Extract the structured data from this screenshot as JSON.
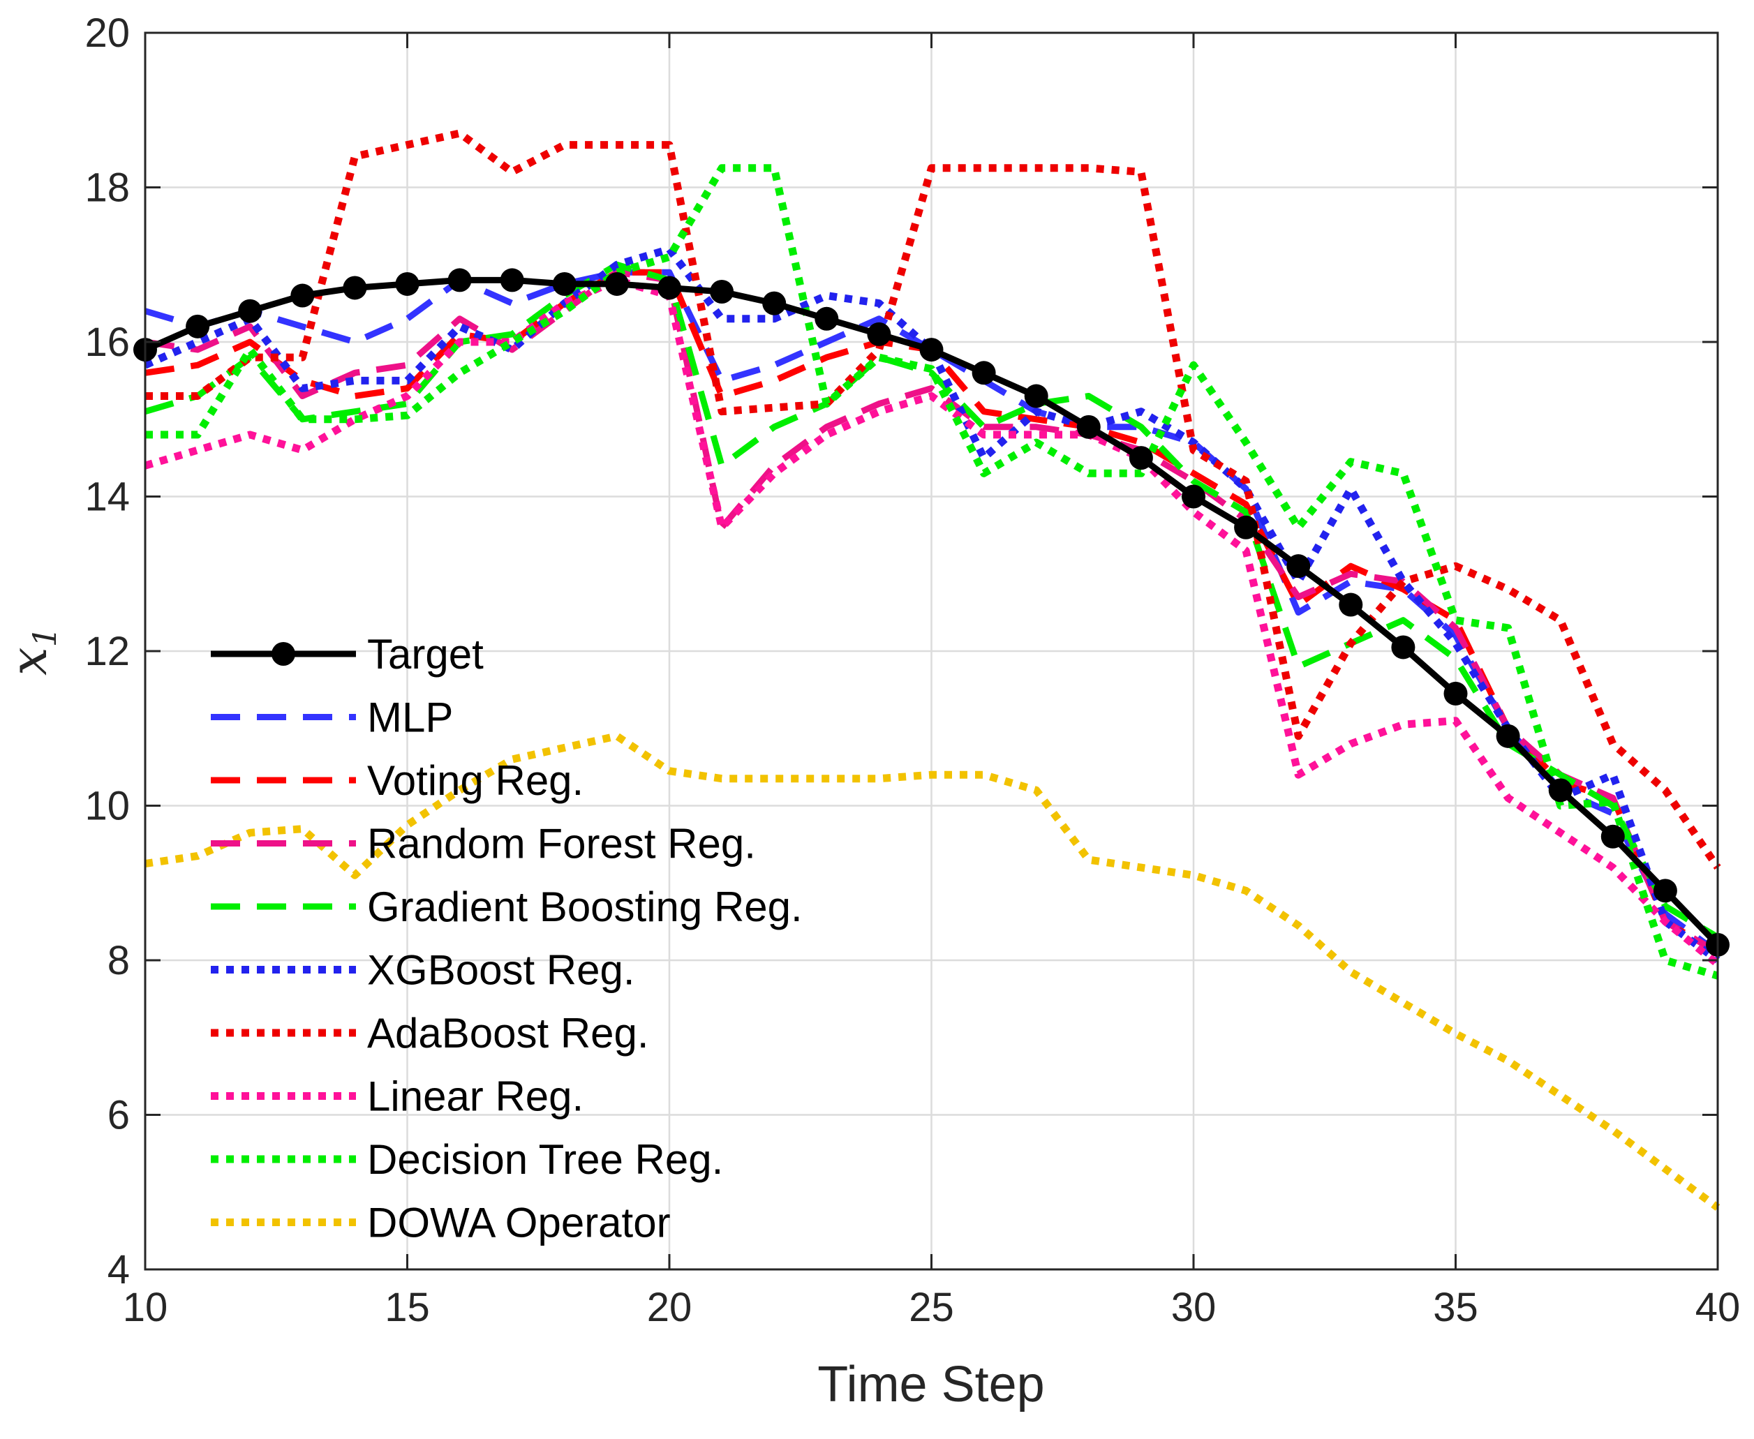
{
  "chart_data": {
    "type": "line",
    "title": "",
    "xlabel": "Time Step",
    "ylabel_var": "x",
    "ylabel_sub": "1",
    "xlim": [
      10,
      40
    ],
    "ylim": [
      4,
      20
    ],
    "xticks": [
      10,
      15,
      20,
      25,
      30,
      35,
      40
    ],
    "yticks": [
      4,
      6,
      8,
      10,
      12,
      14,
      16,
      18,
      20
    ],
    "grid": true,
    "legend_position": "lower-left",
    "x": [
      10,
      11,
      12,
      13,
      14,
      15,
      16,
      17,
      18,
      19,
      20,
      21,
      22,
      23,
      24,
      25,
      26,
      27,
      28,
      29,
      30,
      31,
      32,
      33,
      34,
      35,
      36,
      37,
      38,
      39,
      40
    ],
    "series": [
      {
        "name": "Target",
        "color": "#000000",
        "style": "solid-markers",
        "values": [
          15.9,
          16.2,
          16.4,
          16.6,
          16.7,
          16.75,
          16.8,
          16.8,
          16.75,
          16.75,
          16.7,
          16.65,
          16.5,
          16.3,
          16.1,
          15.9,
          15.6,
          15.3,
          14.9,
          14.5,
          14.0,
          13.6,
          13.1,
          12.6,
          12.05,
          11.45,
          10.9,
          10.2,
          9.6,
          8.9,
          8.2
        ]
      },
      {
        "name": "MLP",
        "color": "#3333FF",
        "style": "dashed",
        "values": [
          16.4,
          16.2,
          16.4,
          16.2,
          16.0,
          16.3,
          16.8,
          16.5,
          16.75,
          16.9,
          16.9,
          15.5,
          15.7,
          16.0,
          16.3,
          15.9,
          15.5,
          15.1,
          14.9,
          14.9,
          14.7,
          14.1,
          12.5,
          12.9,
          12.8,
          12.2,
          11.0,
          10.2,
          9.9,
          8.6,
          8.1
        ]
      },
      {
        "name": "Voting Reg.",
        "color": "#FF0000",
        "style": "dashed",
        "values": [
          15.6,
          15.7,
          16.0,
          15.5,
          15.3,
          15.4,
          16.1,
          16.0,
          16.5,
          16.9,
          16.9,
          15.3,
          15.5,
          15.8,
          16.0,
          15.9,
          15.1,
          15.0,
          14.9,
          14.7,
          14.3,
          13.9,
          12.6,
          13.1,
          12.8,
          12.4,
          11.0,
          10.3,
          10.1,
          8.5,
          8.1
        ]
      },
      {
        "name": "Random Forest Reg.",
        "color": "#EE1188",
        "style": "dashed",
        "values": [
          16.0,
          15.9,
          16.2,
          15.3,
          15.6,
          15.7,
          16.3,
          15.9,
          16.4,
          16.9,
          16.8,
          13.6,
          14.4,
          14.9,
          15.2,
          15.4,
          14.9,
          14.9,
          14.8,
          14.6,
          14.2,
          13.7,
          12.7,
          13.0,
          12.9,
          12.3,
          11.0,
          10.4,
          10.1,
          8.5,
          8.1
        ]
      },
      {
        "name": "Gradient Boosting Reg.",
        "color": "#00EE00",
        "style": "dashed",
        "values": [
          15.1,
          15.3,
          15.8,
          15.0,
          15.1,
          15.2,
          16.0,
          16.1,
          16.6,
          17.0,
          16.8,
          14.4,
          14.9,
          15.2,
          15.8,
          15.6,
          14.9,
          15.2,
          15.3,
          14.9,
          14.2,
          13.8,
          11.8,
          12.1,
          12.4,
          11.9,
          10.8,
          10.4,
          10.0,
          8.7,
          8.3
        ]
      },
      {
        "name": "XGBoost Reg.",
        "color": "#2222EE",
        "style": "dotted",
        "values": [
          15.7,
          16.0,
          16.3,
          15.4,
          15.5,
          15.5,
          16.2,
          15.9,
          16.5,
          17.0,
          17.2,
          16.3,
          16.3,
          16.6,
          16.5,
          15.9,
          14.5,
          15.1,
          14.9,
          15.1,
          14.7,
          14.1,
          12.9,
          14.1,
          12.9,
          12.1,
          11.0,
          10.1,
          10.4,
          8.5,
          8.0
        ]
      },
      {
        "name": "AdaBoost Reg.",
        "color": "#EE0000",
        "style": "dotted",
        "values": [
          15.3,
          15.3,
          15.8,
          15.8,
          18.4,
          18.55,
          18.7,
          18.2,
          18.55,
          18.55,
          18.55,
          15.1,
          15.15,
          15.2,
          15.9,
          18.25,
          18.25,
          18.25,
          18.25,
          18.2,
          14.6,
          14.2,
          10.9,
          12.1,
          12.9,
          13.1,
          12.8,
          12.4,
          10.8,
          10.2,
          9.2
        ]
      },
      {
        "name": "Linear Reg.",
        "color": "#FF1199",
        "style": "dotted",
        "values": [
          14.4,
          14.6,
          14.8,
          14.6,
          15.0,
          15.3,
          16.0,
          16.0,
          16.5,
          16.8,
          16.6,
          13.6,
          14.3,
          14.8,
          15.1,
          15.3,
          14.8,
          14.8,
          14.8,
          14.5,
          13.8,
          13.3,
          10.4,
          10.8,
          11.05,
          11.1,
          10.1,
          9.65,
          9.2,
          8.5,
          7.95
        ]
      },
      {
        "name": "Decision Tree Reg.",
        "color": "#00EE00",
        "style": "dotted",
        "values": [
          14.8,
          14.8,
          15.9,
          15.0,
          15.0,
          15.05,
          15.6,
          16.0,
          16.4,
          16.9,
          17.1,
          18.25,
          18.25,
          15.2,
          15.8,
          15.65,
          14.3,
          14.7,
          14.3,
          14.3,
          15.7,
          14.7,
          13.6,
          14.45,
          14.3,
          12.4,
          12.3,
          10.0,
          10.05,
          8.0,
          7.8
        ]
      },
      {
        "name": "DOWA Operator",
        "color": "#F2C200",
        "style": "dotted",
        "values": [
          9.25,
          9.35,
          9.65,
          9.7,
          9.1,
          9.75,
          10.2,
          10.6,
          10.75,
          10.9,
          10.45,
          10.35,
          10.35,
          10.35,
          10.35,
          10.4,
          10.4,
          10.2,
          9.3,
          9.2,
          9.1,
          8.9,
          8.45,
          7.85,
          7.45,
          7.05,
          6.7,
          6.25,
          5.8,
          5.3,
          4.8
        ]
      }
    ]
  }
}
